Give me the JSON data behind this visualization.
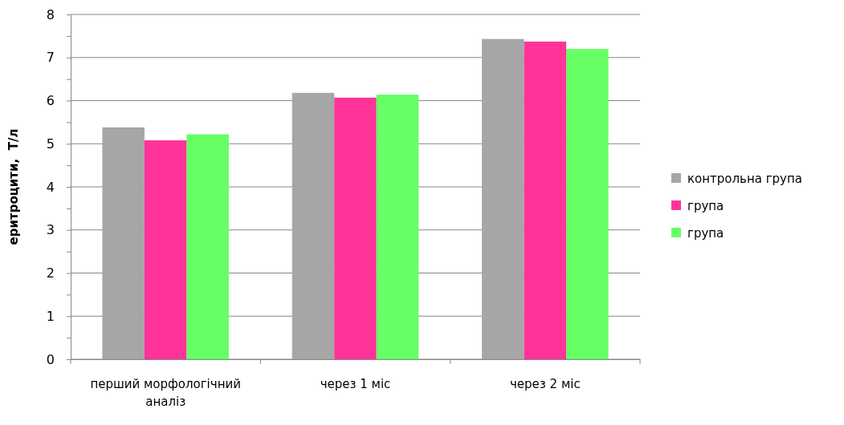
{
  "chart_data": {
    "type": "bar",
    "ylabel": "еритроцити,  Т/л",
    "categories": [
      "перший морфологічний аналіз",
      "через 1 міс",
      "через 2 міс"
    ],
    "series": [
      {
        "name": "контрольна група",
        "color": "#a6a6a6",
        "values": [
          5.38,
          6.18,
          7.43
        ]
      },
      {
        "name": "група",
        "color": "#ff3399",
        "values": [
          5.08,
          6.07,
          7.37
        ]
      },
      {
        "name": "група",
        "color": "#66ff66",
        "values": [
          5.22,
          6.14,
          7.2
        ]
      }
    ],
    "ylim": [
      0,
      8
    ],
    "yticks": [
      0,
      {
        "value": 0.5,
        "label": null
      },
      1,
      {
        "value": 1.5,
        "label": null
      },
      2,
      {
        "value": 2.5,
        "label": null
      },
      3,
      {
        "value": 3.5,
        "label": null
      },
      4,
      {
        "value": 4.5,
        "label": null
      },
      5,
      {
        "value": 5.5,
        "label": null
      },
      6,
      {
        "value": 6.5,
        "label": null
      },
      7,
      {
        "value": 7.5,
        "label": null
      },
      8
    ],
    "grid": "y",
    "legend": "right"
  }
}
